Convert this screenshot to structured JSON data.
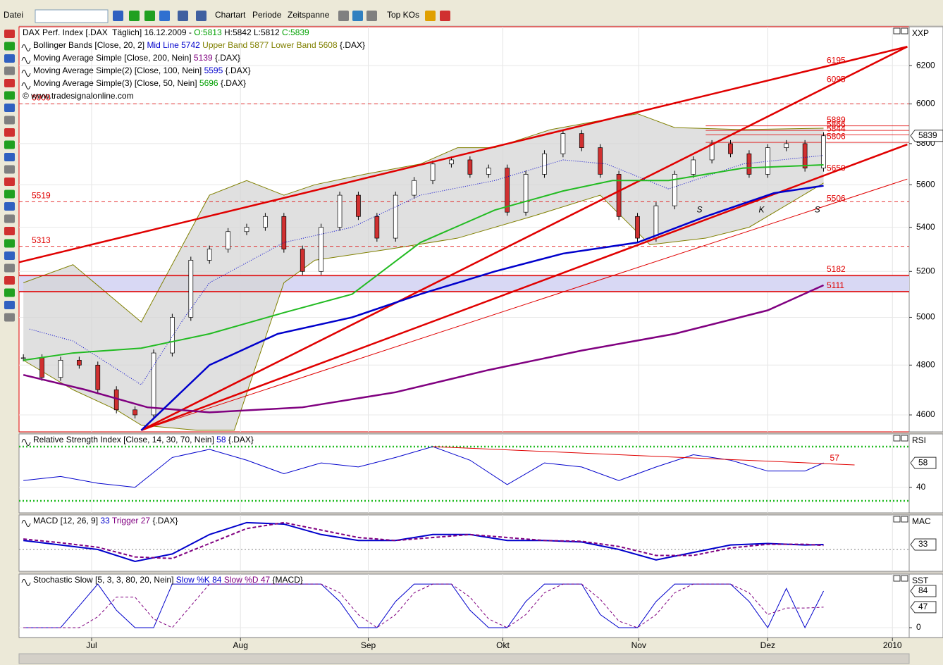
{
  "toolbar": {
    "menus": [
      "Datei",
      "Chartart",
      "Periode",
      "Zeitspanne",
      "Top KOs"
    ]
  },
  "x_axis": {
    "xlim": [
      -0.7,
      142.8
    ],
    "ticks": [
      {
        "value": 11,
        "label": "Jul"
      },
      {
        "value": 35,
        "label": "Aug"
      },
      {
        "value": 55.6,
        "label": "Sep"
      },
      {
        "value": 77.3,
        "label": "Okt"
      },
      {
        "value": 99.2,
        "label": "Nov"
      },
      {
        "value": 120,
        "label": "Dez"
      },
      {
        "value": 140.1,
        "label": "2010"
      }
    ]
  },
  "price_panel": {
    "axis_title": "XXP",
    "log_scale": true,
    "ylim": [
      4534,
      6409
    ],
    "yticks": [
      4600,
      4800,
      5000,
      5200,
      5400,
      5600,
      5800,
      6000,
      6200
    ],
    "last": 5839,
    "legend": [
      [
        {
          "text": "DAX Perf. Index [.DAX  Täglich] 16.12.2009 - ",
          "color": "#000000"
        },
        {
          "text": "O:5813",
          "color": "#00a000"
        },
        {
          "text": " H:5842 L:5812 ",
          "color": "#000000"
        },
        {
          "text": "C:5839",
          "color": "#00a000"
        }
      ],
      [
        {
          "text": "Bollinger Bands [Close, 20, 2] ",
          "color": "#000000"
        },
        {
          "text": "Mid Line 5742",
          "color": "#0000cc"
        },
        {
          "text": " Upper Band 5877 Lower Band 5608",
          "color": "#808000"
        },
        {
          "text": " {.DAX}",
          "color": "#000000"
        }
      ],
      [
        {
          "text": "Moving Average Simple [Close, 200, Nein] ",
          "color": "#000000"
        },
        {
          "text": "5139",
          "color": "#800080"
        },
        {
          "text": " {.DAX}",
          "color": "#000000"
        }
      ],
      [
        {
          "text": "Moving Average Simple(2) [Close, 100, Nein] ",
          "color": "#000000"
        },
        {
          "text": "5595",
          "color": "#0000cc"
        },
        {
          "text": " {.DAX}",
          "color": "#000000"
        }
      ],
      [
        {
          "text": "Moving Average Simple(3) [Close, 50, Nein] ",
          "color": "#000000"
        },
        {
          "text": "5696",
          "color": "#00a000"
        },
        {
          "text": " {.DAX}",
          "color": "#000000"
        }
      ],
      [
        {
          "text": "© www.tradesignalonline.com",
          "color": "#000000"
        }
      ]
    ],
    "levels": [
      {
        "value": 6195,
        "label": "6195",
        "side": "right",
        "line": "none"
      },
      {
        "value": 6095,
        "label": "6095",
        "side": "right",
        "line": "none"
      },
      {
        "value": 6000,
        "label": "6000",
        "side": "left",
        "line": "dashed"
      },
      {
        "value": 5889,
        "label": "5889",
        "side": "right",
        "line": "solid"
      },
      {
        "value": 5866,
        "label": "5866",
        "side": "right",
        "line": "solid"
      },
      {
        "value": 5844,
        "label": "5844",
        "side": "right",
        "line": "solid"
      },
      {
        "value": 5806,
        "label": "5806",
        "side": "right",
        "line": "solid"
      },
      {
        "value": 5650,
        "label": "5650",
        "side": "right",
        "line": "none"
      },
      {
        "value": 5519,
        "label": "5519",
        "side": "left",
        "line": "dashed"
      },
      {
        "value": 5506,
        "label": "5506",
        "side": "right",
        "line": "none"
      },
      {
        "value": 5313,
        "label": "5313",
        "side": "left",
        "line": "dashed"
      },
      {
        "value": 5182,
        "label": "5182",
        "side": "right",
        "line": "solid"
      },
      {
        "value": 5111,
        "label": "5111",
        "side": "right",
        "line": "solid"
      }
    ],
    "band": [
      5111,
      5182
    ],
    "band_color": "#d8d8f4",
    "candles": {
      "x": [
        0,
        3,
        6,
        9,
        12,
        15,
        18,
        21,
        24,
        27,
        30,
        33,
        36,
        39,
        42,
        45,
        48,
        51,
        54,
        57,
        60,
        63,
        66,
        69,
        72,
        75,
        78,
        81,
        84,
        87,
        90,
        93,
        96,
        99,
        102,
        105,
        108,
        111,
        114,
        117,
        120,
        123,
        126,
        129
      ],
      "close": [
        4830,
        4750,
        4820,
        4800,
        4700,
        4620,
        4600,
        4850,
        5000,
        5250,
        5300,
        5380,
        5400,
        5450,
        5300,
        5200,
        5400,
        5550,
        5450,
        5350,
        5550,
        5620,
        5700,
        5720,
        5650,
        5680,
        5470,
        5650,
        5750,
        5850,
        5780,
        5650,
        5450,
        5350,
        5500,
        5650,
        5720,
        5800,
        5750,
        5650,
        5780,
        5800,
        5680,
        5839
      ],
      "up_color": "#ffffff",
      "down_color": "#d03030"
    },
    "bands": {
      "color": "#808000",
      "fill": "#d6d6d6",
      "upper": {
        "x": [
          0,
          8,
          19,
          30,
          36,
          42,
          47,
          55,
          64,
          70,
          76,
          85,
          99,
          105,
          116,
          129
        ],
        "values": [
          5150,
          5230,
          4980,
          5550,
          5620,
          5550,
          5600,
          5650,
          5700,
          5780,
          5780,
          5870,
          5950,
          5880,
          5870,
          5877
        ]
      },
      "lower": {
        "x": [
          0,
          8,
          15,
          19,
          28,
          34,
          42,
          47,
          59,
          70,
          82,
          93,
          101,
          110,
          117,
          129
        ],
        "values": [
          4820,
          4700,
          4620,
          4560,
          4540,
          4540,
          5150,
          5250,
          5300,
          5350,
          5450,
          5550,
          5320,
          5350,
          5400,
          5608
        ]
      }
    },
    "series": [
      {
        "color": "#0000cc",
        "width": 1,
        "dash": "1 2",
        "x": [
          1,
          8,
          19,
          26,
          30,
          42,
          53,
          64,
          76,
          87,
          94,
          104,
          116,
          129
        ],
        "values": [
          4950,
          4900,
          4720,
          5000,
          5150,
          5330,
          5400,
          5550,
          5620,
          5720,
          5700,
          5580,
          5700,
          5742
        ]
      },
      {
        "color": "#800080",
        "width": 2.5,
        "dash": "",
        "x": [
          0,
          10,
          20,
          30,
          45,
          60,
          75,
          90,
          105,
          120,
          129
        ],
        "values": [
          4760,
          4700,
          4630,
          4610,
          4630,
          4690,
          4780,
          4860,
          4930,
          5030,
          5139
        ]
      },
      {
        "color": "#0000cc",
        "width": 2.5,
        "dash": "",
        "x": [
          19,
          30,
          41,
          53,
          64,
          76,
          87,
          99,
          110,
          121,
          129
        ],
        "values": [
          4540,
          4800,
          4930,
          5000,
          5100,
          5200,
          5280,
          5330,
          5450,
          5560,
          5595
        ]
      },
      {
        "color": "#22bb22",
        "width": 2,
        "dash": "",
        "x": [
          0,
          8,
          19,
          30,
          42,
          53,
          64,
          76,
          87,
          95,
          104,
          116,
          129
        ],
        "values": [
          4820,
          4850,
          4870,
          4930,
          5020,
          5100,
          5330,
          5480,
          5570,
          5620,
          5620,
          5680,
          5696
        ]
      }
    ],
    "trendlines": [
      {
        "color": "#e00000",
        "width": 2.5,
        "points": [
          [
            -0.7,
            5241
          ],
          [
            142.5,
            6301
          ]
        ]
      },
      {
        "color": "#e00000",
        "width": 2.5,
        "points": [
          [
            19,
            4540
          ],
          [
            142.5,
            6301
          ]
        ]
      },
      {
        "color": "#e00000",
        "width": 2.5,
        "points": [
          [
            19,
            4540
          ],
          [
            142.5,
            5796
          ]
        ]
      },
      {
        "color": "#e00000",
        "width": 1,
        "points": [
          [
            19,
            4540
          ],
          [
            142.5,
            5627
          ]
        ]
      }
    ],
    "annotations": [
      {
        "text": "S",
        "x": 109,
        "value": 5480
      },
      {
        "text": "K",
        "x": 119,
        "value": 5480
      },
      {
        "text": "S",
        "x": 128,
        "value": 5480
      }
    ]
  },
  "rsi_panel": {
    "axis_title": "RSI",
    "ylim": [
      21.2,
      79.35
    ],
    "yticks": [
      40
    ],
    "last": 58,
    "legend": [
      {
        "text": "Relative Strength Index [Close, 14, 30, 70, Nein] ",
        "color": "#000000"
      },
      {
        "text": "58",
        "color": "#0000cc"
      },
      {
        "text": " {.DAX}",
        "color": "#000000"
      }
    ],
    "levels": [
      {
        "value": 70,
        "color": "#22bb22"
      },
      {
        "value": 30,
        "color": "#22bb22"
      }
    ],
    "series": [
      {
        "color": "#0000cc",
        "width": 1,
        "dash": "",
        "x": [
          0,
          6,
          12,
          18,
          24,
          30,
          36,
          42,
          48,
          54,
          60,
          66,
          72,
          78,
          84,
          90,
          96,
          102,
          108,
          114,
          120,
          126,
          129
        ],
        "values": [
          45,
          48,
          43,
          40,
          62,
          68,
          60,
          50,
          58,
          55,
          62,
          70,
          60,
          42,
          58,
          55,
          45,
          55,
          64,
          60,
          52,
          52,
          58
        ]
      }
    ],
    "trendline": {
      "color": "#e00000",
      "label": "57",
      "points": [
        [
          66,
          70
        ],
        [
          134,
          56.5
        ]
      ]
    }
  },
  "macd_panel": {
    "axis_title": "MAC",
    "ylim": [
      -146,
      231
    ],
    "yticks": [],
    "last": 33,
    "legend": [
      {
        "text": "MACD [12, 26, 9] ",
        "color": "#000000"
      },
      {
        "text": "33",
        "color": "#0000cc"
      },
      {
        "text": " Trigger 27",
        "color": "#800080"
      },
      {
        "text": " {.DAX}",
        "color": "#000000"
      }
    ],
    "levels": [
      {
        "value": 0,
        "color": "#808080"
      }
    ],
    "series": [
      {
        "color": "#0000cc",
        "width": 2,
        "dash": "",
        "x": [
          0,
          6,
          12,
          18,
          24,
          30,
          36,
          42,
          48,
          54,
          60,
          66,
          72,
          78,
          84,
          90,
          96,
          102,
          108,
          114,
          120,
          126,
          129
        ],
        "values": [
          60,
          30,
          0,
          -80,
          -30,
          100,
          180,
          170,
          100,
          60,
          60,
          100,
          100,
          60,
          60,
          50,
          0,
          -70,
          -20,
          30,
          40,
          30,
          33
        ]
      },
      {
        "color": "#800080",
        "width": 2,
        "dash": "5 3",
        "x": [
          0,
          6,
          12,
          18,
          24,
          30,
          36,
          42,
          48,
          54,
          60,
          66,
          72,
          78,
          84,
          90,
          96,
          102,
          108,
          114,
          120,
          126,
          129
        ],
        "values": [
          70,
          45,
          15,
          -50,
          -60,
          40,
          140,
          180,
          130,
          80,
          60,
          80,
          100,
          80,
          60,
          55,
          20,
          -40,
          -40,
          10,
          35,
          35,
          27
        ]
      }
    ]
  },
  "stoch_panel": {
    "axis_title": "SST",
    "ylim": [
      -22.6,
      122.8
    ],
    "yticks": [
      0
    ],
    "last": [
      84,
      47
    ],
    "legend": [
      {
        "text": "Stochastic Slow [5, 3, 3, 80, 20, Nein] ",
        "color": "#000000"
      },
      {
        "text": "Slow %K 84",
        "color": "#0000cc"
      },
      {
        "text": " Slow %D 47",
        "color": "#800080"
      },
      {
        "text": " {MACD}",
        "color": "#000000"
      }
    ],
    "levels": [],
    "series": [
      {
        "color": "#0000cc",
        "width": 1,
        "dash": "",
        "x": [
          0,
          3,
          6,
          9,
          12,
          15,
          18,
          21,
          24,
          27,
          30,
          33,
          36,
          39,
          42,
          45,
          48,
          51,
          54,
          57,
          60,
          63,
          66,
          69,
          72,
          75,
          78,
          81,
          84,
          87,
          90,
          93,
          96,
          99,
          102,
          105,
          108,
          111,
          114,
          117,
          120,
          123,
          126,
          129
        ],
        "values": [
          0,
          0,
          0,
          50,
          100,
          40,
          0,
          0,
          100,
          100,
          100,
          100,
          100,
          100,
          100,
          100,
          100,
          60,
          0,
          0,
          60,
          100,
          100,
          100,
          40,
          0,
          0,
          60,
          100,
          100,
          100,
          30,
          0,
          0,
          60,
          100,
          100,
          100,
          100,
          60,
          0,
          90,
          0,
          84
        ]
      },
      {
        "color": "#800080",
        "width": 1,
        "dash": "4 3",
        "x": [
          0,
          3,
          6,
          9,
          12,
          15,
          18,
          21,
          24,
          27,
          30,
          33,
          36,
          39,
          42,
          45,
          48,
          51,
          54,
          57,
          60,
          63,
          66,
          69,
          72,
          75,
          78,
          81,
          84,
          87,
          90,
          93,
          96,
          99,
          102,
          105,
          108,
          111,
          114,
          117,
          120,
          123,
          126,
          129
        ],
        "values": [
          0,
          0,
          0,
          0,
          25,
          70,
          70,
          20,
          0,
          50,
          100,
          100,
          100,
          100,
          100,
          100,
          100,
          80,
          30,
          0,
          30,
          80,
          100,
          100,
          70,
          20,
          0,
          30,
          80,
          100,
          100,
          65,
          15,
          0,
          30,
          80,
          100,
          100,
          100,
          80,
          30,
          45,
          45,
          47
        ]
      }
    ]
  }
}
